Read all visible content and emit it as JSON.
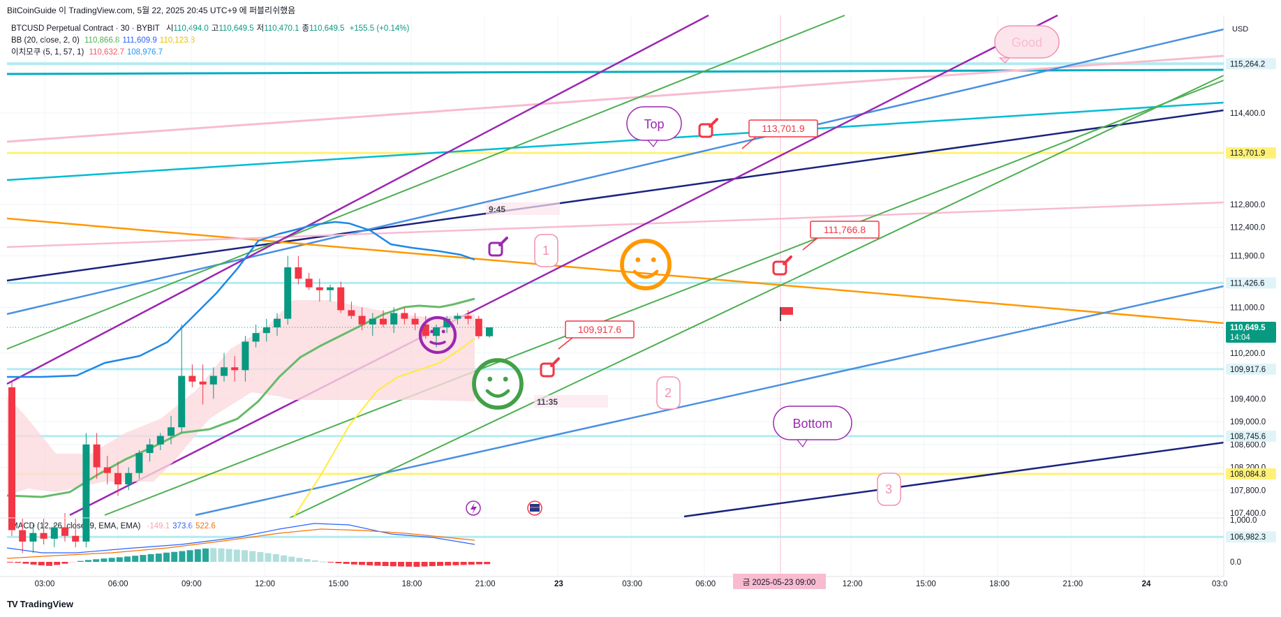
{
  "attribution": "BitCoinGuide 이 TradingView.com, 5월 22, 2025 20:45 UTC+9 에 퍼블리쉬했음",
  "footer_brand": "TradingView",
  "currency": "USD",
  "legend": {
    "symbol_line": "BTCUSD Perpetual Contract · 30 · BYBIT",
    "ohlc": [
      {
        "k": "시",
        "v": "110,494.0"
      },
      {
        "k": "고",
        "v": "110,649.5"
      },
      {
        "k": "저",
        "v": "110,470.1"
      },
      {
        "k": "종",
        "v": "110,649.5"
      }
    ],
    "change": "+155.5 (+0.14%)",
    "bb_label": "BB (20, close, 2, 0)",
    "bb_values": [
      {
        "v": "110,866.8",
        "color": "#4caf50"
      },
      {
        "v": "111,609.9",
        "color": "#2962ff"
      },
      {
        "v": "110,123.8",
        "color": "#e6c300"
      }
    ],
    "ichimoku_label": "이치모쿠 (5, 1, 57, 1)",
    "ichimoku_values": [
      {
        "v": "110,632.7",
        "color": "#f7525f"
      },
      {
        "v": "108,976.7",
        "color": "#2196f3"
      }
    ]
  },
  "macd": {
    "label": "MACD (12, 26, close, 9, EMA, EMA)",
    "values": [
      {
        "v": "-149.1",
        "color": "#f8a5ac"
      },
      {
        "v": "373.6",
        "color": "#2962ff"
      },
      {
        "v": "522.6",
        "color": "#ff6d00"
      }
    ],
    "axis_ticks": [
      {
        "label": "1,000.0",
        "value": 1000
      },
      {
        "label": "0.0",
        "value": 0
      }
    ],
    "histogram": [
      -20,
      -60,
      -120,
      -180,
      -230,
      -260,
      -200,
      -120,
      -30,
      60,
      120,
      170,
      220,
      260,
      300,
      350,
      400,
      450,
      500,
      540,
      600,
      650,
      700,
      760,
      820,
      870,
      900,
      880,
      840,
      800,
      760,
      700,
      640,
      570,
      500,
      420,
      340,
      260,
      180,
      100,
      20,
      -40,
      -90,
      -130,
      -170,
      -200,
      -230,
      -250,
      -270,
      -290,
      -300,
      -310,
      -320,
      -300,
      -280,
      -260,
      -240,
      -220,
      -200,
      -180,
      -160,
      -149
    ]
  },
  "chart_data": {
    "type": "candlestick",
    "symbol": "BTCUSD Perpetual Contract",
    "interval": "30",
    "exchange": "BYBIT",
    "y_axis": {
      "ticks": [
        114400,
        112800,
        112400,
        111900,
        111000,
        110200,
        109400,
        109000,
        108600,
        108200,
        107800,
        107400
      ],
      "tick_labels": [
        "114,400.0",
        "112,800.0",
        "112,400.0",
        "111,900.0",
        "111,000.0",
        "110,200.0",
        "109,400.0",
        "109,000.0",
        "108,600.0",
        "108,200.0",
        "107,800.0",
        "107,400.0"
      ],
      "price_labels": [
        {
          "label": "115,264.2",
          "value": 115264.2,
          "bg": "#e0f4f8",
          "fg": "#131722"
        },
        {
          "label": "113,701.9",
          "value": 113701.9,
          "bg": "#fff176",
          "fg": "#131722"
        },
        {
          "label": "111,426.6",
          "value": 111426.6,
          "bg": "#e0f4f8",
          "fg": "#131722"
        },
        {
          "label": "110,649.5",
          "value": 110649.5,
          "bg": "#089981",
          "fg": "#ffffff",
          "sub": "14:04"
        },
        {
          "label": "109,917.6",
          "value": 109917.6,
          "bg": "#e0f4f8",
          "fg": "#131722"
        },
        {
          "label": "108,745.6",
          "value": 108745.6,
          "bg": "#e0f4f8",
          "fg": "#131722"
        },
        {
          "label": "108,084.8",
          "value": 108084.8,
          "bg": "#fff176",
          "fg": "#131722"
        },
        {
          "label": "106,982.3",
          "value": 106982.3,
          "bg": "#e0f4f8",
          "fg": "#131722"
        }
      ]
    },
    "x_axis": {
      "ticks": [
        "03:00",
        "06:00",
        "09:00",
        "12:00",
        "15:00",
        "18:00",
        "21:00",
        "23",
        "03:00",
        "06:00",
        "09:00",
        "12:00",
        "15:00",
        "18:00",
        "21:00",
        "24",
        "03:0"
      ],
      "crosshair_label": "금 2025-05-23   09:00"
    },
    "candles": [
      {
        "o": 109600,
        "h": 109700,
        "l": 107000,
        "c": 107100
      },
      {
        "o": 107100,
        "h": 107300,
        "l": 106700,
        "c": 106900
      },
      {
        "o": 106900,
        "h": 107200,
        "l": 106700,
        "c": 107050
      },
      {
        "o": 107050,
        "h": 107300,
        "l": 106850,
        "c": 106950
      },
      {
        "o": 106950,
        "h": 107200,
        "l": 106800,
        "c": 107150
      },
      {
        "o": 107150,
        "h": 107400,
        "l": 106900,
        "c": 107000
      },
      {
        "o": 107000,
        "h": 107300,
        "l": 106800,
        "c": 106900
      },
      {
        "o": 106900,
        "h": 108800,
        "l": 106800,
        "c": 108600
      },
      {
        "o": 108600,
        "h": 108800,
        "l": 108000,
        "c": 108200
      },
      {
        "o": 108200,
        "h": 108400,
        "l": 107900,
        "c": 108100
      },
      {
        "o": 108100,
        "h": 108300,
        "l": 107700,
        "c": 107900
      },
      {
        "o": 107900,
        "h": 108200,
        "l": 107800,
        "c": 108100
      },
      {
        "o": 108100,
        "h": 108500,
        "l": 108000,
        "c": 108450
      },
      {
        "o": 108450,
        "h": 108700,
        "l": 108300,
        "c": 108600
      },
      {
        "o": 108600,
        "h": 108800,
        "l": 108500,
        "c": 108750
      },
      {
        "o": 108750,
        "h": 109100,
        "l": 108600,
        "c": 108900
      },
      {
        "o": 108900,
        "h": 110700,
        "l": 108800,
        "c": 109800
      },
      {
        "o": 109800,
        "h": 110000,
        "l": 109600,
        "c": 109700
      },
      {
        "o": 109700,
        "h": 110000,
        "l": 109300,
        "c": 109650
      },
      {
        "o": 109650,
        "h": 109950,
        "l": 109400,
        "c": 109800
      },
      {
        "o": 109800,
        "h": 110200,
        "l": 109700,
        "c": 109950
      },
      {
        "o": 109950,
        "h": 110150,
        "l": 109700,
        "c": 109900
      },
      {
        "o": 109900,
        "h": 110500,
        "l": 109700,
        "c": 110400
      },
      {
        "o": 110400,
        "h": 110700,
        "l": 110300,
        "c": 110550
      },
      {
        "o": 110550,
        "h": 110800,
        "l": 110400,
        "c": 110650
      },
      {
        "o": 110650,
        "h": 110900,
        "l": 110500,
        "c": 110800
      },
      {
        "o": 110800,
        "h": 111900,
        "l": 110700,
        "c": 111700
      },
      {
        "o": 111700,
        "h": 111900,
        "l": 111400,
        "c": 111500
      },
      {
        "o": 111500,
        "h": 111600,
        "l": 111300,
        "c": 111350
      },
      {
        "o": 111350,
        "h": 111500,
        "l": 111100,
        "c": 111300
      },
      {
        "o": 111300,
        "h": 111400,
        "l": 111100,
        "c": 111350
      },
      {
        "o": 111350,
        "h": 111450,
        "l": 110900,
        "c": 110950
      },
      {
        "o": 110950,
        "h": 111100,
        "l": 110800,
        "c": 110850
      },
      {
        "o": 110850,
        "h": 111000,
        "l": 110600,
        "c": 110700
      },
      {
        "o": 110700,
        "h": 110900,
        "l": 110500,
        "c": 110800
      },
      {
        "o": 110800,
        "h": 110950,
        "l": 110650,
        "c": 110700
      },
      {
        "o": 110700,
        "h": 111000,
        "l": 110550,
        "c": 110900
      },
      {
        "o": 110900,
        "h": 111000,
        "l": 110700,
        "c": 110800
      },
      {
        "o": 110800,
        "h": 110900,
        "l": 110600,
        "c": 110700
      },
      {
        "o": 110700,
        "h": 110850,
        "l": 110450,
        "c": 110500
      },
      {
        "o": 110500,
        "h": 110700,
        "l": 110300,
        "c": 110650
      },
      {
        "o": 110650,
        "h": 110850,
        "l": 110550,
        "c": 110800
      },
      {
        "o": 110800,
        "h": 110900,
        "l": 110700,
        "c": 110850
      },
      {
        "o": 110850,
        "h": 110950,
        "l": 110700,
        "c": 110800
      },
      {
        "o": 110800,
        "h": 110850,
        "l": 110450,
        "c": 110494
      },
      {
        "o": 110494,
        "h": 110649.5,
        "l": 110470.1,
        "c": 110649.5
      }
    ],
    "annotations": {
      "price_callouts": [
        "113,701.9",
        "111,766.8",
        "109,917.6"
      ],
      "bubbles": [
        "Top",
        "Good",
        "Bottom"
      ],
      "time_notes": [
        "9:45",
        "11:35"
      ],
      "wave_numbers": [
        "1",
        "2",
        "3"
      ]
    },
    "grid": true
  }
}
